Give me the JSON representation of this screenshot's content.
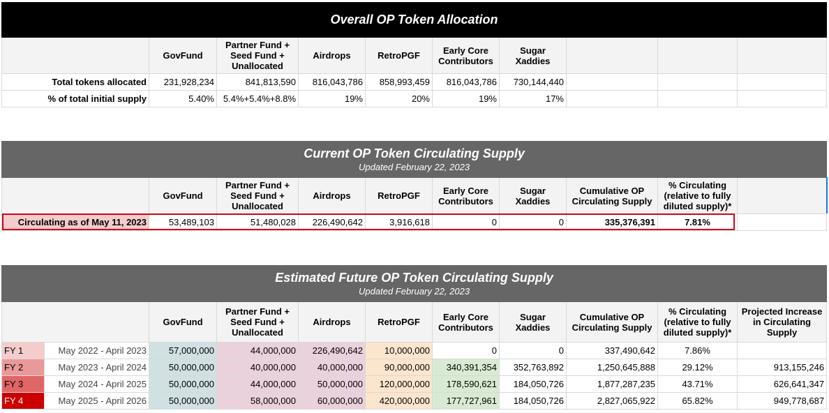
{
  "overall": {
    "title": "Overall OP Token Allocation",
    "headers": [
      "GovFund",
      "Partner Fund + Seed Fund + Unallocated",
      "Airdrops",
      "RetroPGF",
      "Early Core Contributors",
      "Sugar Xaddies"
    ],
    "rows": [
      {
        "label": "Total tokens allocated",
        "values": [
          "231,928,234",
          "841,813,590",
          "816,043,786",
          "858,993,459",
          "816,043,786",
          "730,144,440"
        ]
      },
      {
        "label": "% of total initial supply",
        "values": [
          "5.40%",
          "5.4%+5.4%+8.8%",
          "19%",
          "20%",
          "19%",
          "17%"
        ]
      }
    ]
  },
  "current": {
    "title": "Current OP Token Circulating Supply",
    "subtitle": "Updated February 22, 2023",
    "headers": [
      "GovFund",
      "Partner Fund + Seed Fund + Unallocated",
      "Airdrops",
      "RetroPGF",
      "Early Core Contributors",
      "Sugar Xaddies",
      "Cumulative OP Circulating Supply",
      "% Circulating (relative to fully diluted supply)*"
    ],
    "row": {
      "label": "Circulating as of May 11, 2023",
      "values": [
        "53,489,103",
        "51,480,028",
        "226,490,642",
        "3,916,618",
        "0",
        "0",
        "335,376,391",
        "7.81%"
      ]
    }
  },
  "future": {
    "title": "Estimated Future OP Token Circulating Supply",
    "subtitle": "Updated February 22, 2023",
    "headers": [
      "GovFund",
      "Partner Fund + Seed Fund + Unallocated",
      "Airdrops",
      "RetroPGF",
      "Early Core Contributors",
      "Sugar Xaddies",
      "Cumulative OP Circulating Supply",
      "% Circulating (relative to fully diluted supply)*",
      "Projected Increase in Circulating Supply"
    ],
    "rows": [
      {
        "fy": "FY 1",
        "period": "May 2022 - April 2023",
        "values": [
          "57,000,000",
          "44,000,000",
          "226,490,642",
          "10,000,000",
          "0",
          "0",
          "337,490,642",
          "7.86%",
          ""
        ]
      },
      {
        "fy": "FY 2",
        "period": "May 2023 - April 2024",
        "values": [
          "50,000,000",
          "40,000,000",
          "40,000,000",
          "90,000,000",
          "340,391,354",
          "352,763,892",
          "1,250,645,888",
          "29.12%",
          "913,155,246"
        ]
      },
      {
        "fy": "FY 3",
        "period": "May 2024 - April 2025",
        "values": [
          "50,000,000",
          "44,000,000",
          "50,000,000",
          "120,000,000",
          "178,590,621",
          "184,050,726",
          "1,877,287,235",
          "43.71%",
          "626,641,347"
        ]
      },
      {
        "fy": "FY 4",
        "period": "May 2025 - April 2026",
        "values": [
          "50,000,000",
          "58,000,000",
          "60,000,000",
          "420,000,000",
          "177,727,961",
          "184,050,726",
          "2,827,065,922",
          "65.82%",
          "949,778,687"
        ]
      }
    ]
  },
  "colors": {
    "band_black": "#000000",
    "band_gray": "#666666",
    "highlight": "#d0021b"
  }
}
